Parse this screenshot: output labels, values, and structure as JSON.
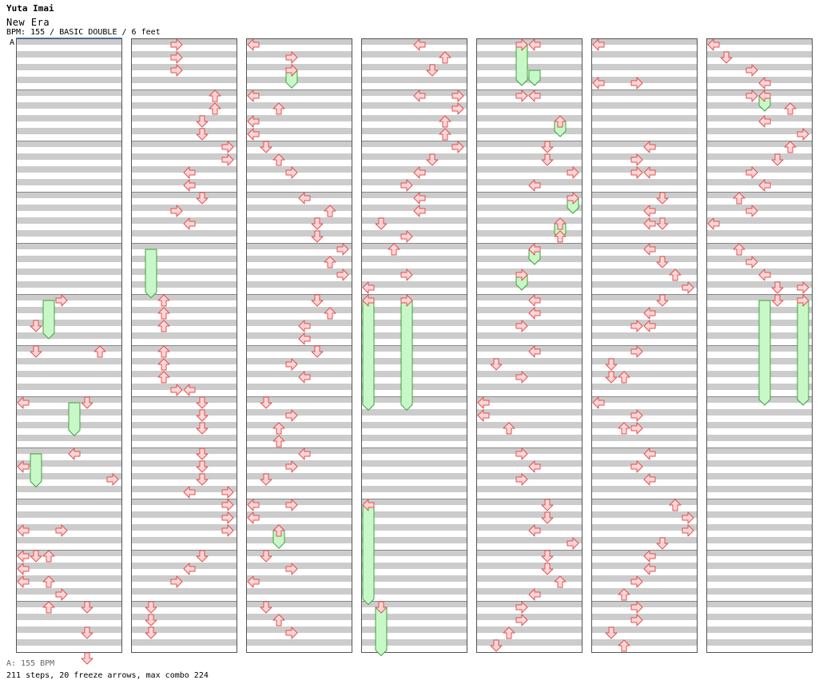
{
  "song": {
    "artist": "Yuta Imai",
    "title": "New Era",
    "info": "BPM: 155 / BASIC DOUBLE / 6 feet",
    "marker": "A"
  },
  "footer": {
    "bpm_line": "A: 155 BPM",
    "stats_line": "211 steps, 20 freeze arrows, max combo 224"
  },
  "colors": {
    "stripe": "#cccccc",
    "arrow_fill": "#ffd6d6",
    "arrow_stroke": "#e05050",
    "freeze_fill": "#c8f8c8",
    "freeze_stroke": "#40a040",
    "border": "#555555",
    "marker_line": "#4a8ad8"
  },
  "chart_data": {
    "type": "step-chart",
    "mode": "BASIC DOUBLE",
    "bpm": 155,
    "lanes": [
      "P1-left",
      "P1-down",
      "P1-up",
      "P1-right",
      "P2-left",
      "P2-down",
      "P2-up",
      "P2-right"
    ],
    "measures_per_column": 12,
    "beats_per_measure": 4,
    "columns": [
      {
        "arrows": [
          [
            5,
            0.0,
            3
          ],
          [
            5,
            0.5,
            1
          ],
          [
            6,
            0.0,
            1
          ],
          [
            7,
            0.0,
            0
          ],
          [
            8,
            2.0,
            1
          ],
          [
            8,
            0.25,
            0
          ],
          [
            8,
            2.25,
            0
          ],
          [
            9,
            0.5,
            0
          ],
          [
            9,
            1.0,
            0
          ],
          [
            9,
            1.5,
            0
          ],
          [
            10,
            0.0,
            2
          ],
          [
            10,
            0.5,
            2
          ],
          [
            10,
            1.0,
            2
          ],
          [
            11,
            0.0,
            5
          ],
          [
            11,
            0.5,
            5
          ],
          [
            11,
            1.0,
            5
          ],
          [
            6,
            1.0,
            5
          ],
          [
            6,
            2.0,
            4
          ],
          [
            5,
            1.0,
            6
          ],
          [
            6,
            2.5,
            7
          ],
          [
            9,
            1.75,
            3
          ],
          [
            8,
            1.5,
            3
          ]
        ],
        "freezes": [
          [
            5,
            0.0,
            2,
            0.7
          ],
          [
            7,
            0.0,
            4,
            0.6
          ],
          [
            8,
            0.0,
            1,
            0.6
          ]
        ]
      },
      {
        "arrows": [
          [
            0,
            0.0,
            3
          ],
          [
            0,
            0.25,
            3
          ],
          [
            0,
            0.5,
            3
          ],
          [
            1,
            0.0,
            6
          ],
          [
            1,
            0.25,
            6
          ],
          [
            1,
            0.5,
            5
          ],
          [
            1,
            0.75,
            5
          ],
          [
            2,
            0.0,
            7
          ],
          [
            2,
            0.25,
            7
          ],
          [
            2,
            0.5,
            4
          ],
          [
            2,
            0.75,
            4
          ],
          [
            3,
            0.0,
            5
          ],
          [
            3,
            0.25,
            3
          ],
          [
            3,
            0.5,
            4
          ],
          [
            5,
            0.0,
            2
          ],
          [
            5,
            0.25,
            2
          ],
          [
            5,
            0.5,
            2
          ],
          [
            6,
            0.0,
            2
          ],
          [
            6,
            0.25,
            2
          ],
          [
            6,
            0.5,
            2
          ],
          [
            6,
            0.75,
            3
          ],
          [
            6,
            0.75,
            4
          ],
          [
            7,
            0.0,
            5
          ],
          [
            7,
            0.25,
            5
          ],
          [
            7,
            0.5,
            5
          ],
          [
            8,
            0.0,
            5
          ],
          [
            8,
            0.25,
            5
          ],
          [
            8,
            0.5,
            5
          ],
          [
            8,
            0.75,
            4
          ],
          [
            8,
            0.75,
            7
          ],
          [
            9,
            0.0,
            7
          ],
          [
            9,
            0.25,
            7
          ],
          [
            9,
            0.5,
            7
          ],
          [
            10,
            0.0,
            5
          ],
          [
            10,
            0.25,
            4
          ],
          [
            10,
            0.5,
            3
          ],
          [
            11,
            0.0,
            1
          ],
          [
            11,
            0.25,
            1
          ],
          [
            11,
            0.5,
            1
          ]
        ],
        "freezes": [
          [
            4,
            0.0,
            1,
            0.9
          ]
        ]
      },
      {
        "arrows": [
          [
            0,
            0.0,
            0
          ],
          [
            0,
            0.25,
            3
          ],
          [
            0,
            0.5,
            3
          ],
          [
            1,
            0.0,
            0
          ],
          [
            1,
            0.25,
            2
          ],
          [
            1,
            0.5,
            0
          ],
          [
            1,
            0.75,
            0
          ],
          [
            2,
            0.0,
            1
          ],
          [
            2,
            0.25,
            2
          ],
          [
            2,
            0.5,
            3
          ],
          [
            3,
            0.0,
            4
          ],
          [
            3,
            0.25,
            6
          ],
          [
            3,
            0.5,
            5
          ],
          [
            3,
            0.75,
            5
          ],
          [
            4,
            0.0,
            7
          ],
          [
            4,
            0.25,
            6
          ],
          [
            4,
            0.5,
            7
          ],
          [
            5,
            0.0,
            5
          ],
          [
            5,
            0.25,
            6
          ],
          [
            5,
            0.5,
            4
          ],
          [
            5,
            0.75,
            4
          ],
          [
            6,
            0.0,
            5
          ],
          [
            6,
            0.25,
            3
          ],
          [
            6,
            0.5,
            4
          ],
          [
            7,
            0.0,
            1
          ],
          [
            7,
            0.25,
            3
          ],
          [
            7,
            0.5,
            2
          ],
          [
            7,
            0.75,
            2
          ],
          [
            8,
            0.0,
            4
          ],
          [
            8,
            0.25,
            3
          ],
          [
            8,
            0.5,
            1
          ],
          [
            9,
            0.0,
            0
          ],
          [
            9,
            0.0,
            3
          ],
          [
            9,
            0.25,
            0
          ],
          [
            9,
            0.5,
            2
          ],
          [
            10,
            0.0,
            1
          ],
          [
            10,
            0.25,
            3
          ],
          [
            10,
            0.5,
            0
          ],
          [
            11,
            0.0,
            1
          ],
          [
            11,
            0.25,
            2
          ],
          [
            11,
            0.5,
            3
          ],
          [
            0,
            0.5,
            3
          ],
          [
            9,
            0.5,
            2
          ]
        ],
        "freezes": [
          [
            0,
            0.5,
            3,
            0.3
          ],
          [
            9,
            0.5,
            2,
            0.3
          ]
        ]
      },
      {
        "arrows": [
          [
            0,
            0.0,
            4
          ],
          [
            0,
            0.25,
            6
          ],
          [
            0,
            0.5,
            5
          ],
          [
            1,
            0.0,
            4
          ],
          [
            1,
            0.0,
            7
          ],
          [
            1,
            0.25,
            7
          ],
          [
            1,
            0.5,
            6
          ],
          [
            1,
            0.75,
            6
          ],
          [
            2,
            0.0,
            7
          ],
          [
            2,
            0.25,
            5
          ],
          [
            2,
            0.5,
            4
          ],
          [
            2,
            0.75,
            3
          ],
          [
            3,
            0.0,
            4
          ],
          [
            3,
            0.25,
            4
          ],
          [
            3,
            0.5,
            1
          ],
          [
            3,
            0.75,
            3
          ],
          [
            4,
            0.0,
            2
          ],
          [
            4,
            0.5,
            3
          ],
          [
            4,
            0.75,
            0
          ],
          [
            5,
            0.0,
            0
          ],
          [
            5,
            0.0,
            3
          ],
          [
            9,
            0.0,
            0
          ],
          [
            11,
            0.0,
            1
          ]
        ],
        "freezes": [
          [
            5,
            0.0,
            0,
            2.1
          ],
          [
            5,
            0.0,
            3,
            2.1
          ],
          [
            9,
            0.0,
            0,
            1.9
          ],
          [
            11,
            0.0,
            1,
            0.9
          ]
        ]
      },
      {
        "arrows": [
          [
            0,
            0.0,
            3
          ],
          [
            1,
            0.0,
            3
          ],
          [
            1,
            0.0,
            4
          ],
          [
            1,
            0.5,
            6
          ],
          [
            2,
            0.0,
            5
          ],
          [
            2,
            0.25,
            5
          ],
          [
            2,
            0.5,
            7
          ],
          [
            2,
            0.75,
            4
          ],
          [
            3,
            0.0,
            7
          ],
          [
            3,
            0.5,
            6
          ],
          [
            4,
            0.0,
            4
          ],
          [
            4,
            0.5,
            3
          ],
          [
            5,
            0.0,
            4
          ],
          [
            5,
            0.25,
            4
          ],
          [
            5,
            0.5,
            3
          ],
          [
            6,
            0.0,
            4
          ],
          [
            6,
            0.25,
            1
          ],
          [
            6,
            0.5,
            3
          ],
          [
            7,
            0.0,
            0
          ],
          [
            7,
            0.25,
            0
          ],
          [
            7,
            0.5,
            2
          ],
          [
            8,
            0.0,
            3
          ],
          [
            8,
            0.25,
            4
          ],
          [
            8,
            0.5,
            3
          ],
          [
            9,
            0.0,
            5
          ],
          [
            9,
            0.25,
            5
          ],
          [
            9,
            0.5,
            4
          ],
          [
            9,
            0.75,
            7
          ],
          [
            10,
            0.0,
            5
          ],
          [
            10,
            0.25,
            5
          ],
          [
            10,
            0.5,
            6
          ],
          [
            10,
            0.75,
            4
          ],
          [
            11,
            0.0,
            3
          ],
          [
            11,
            0.25,
            3
          ],
          [
            11,
            0.5,
            2
          ],
          [
            11,
            0.75,
            1
          ],
          [
            0,
            0.0,
            4
          ],
          [
            3,
            0.75,
            6
          ],
          [
            4,
            0.0,
            4
          ]
        ],
        "freezes": [
          [
            0,
            0.0,
            3,
            0.75
          ],
          [
            0,
            0.5,
            4,
            0.25
          ],
          [
            1,
            0.5,
            6,
            0.25
          ],
          [
            3,
            0.0,
            7,
            0.25
          ],
          [
            3,
            0.5,
            6,
            0.25
          ],
          [
            4,
            0.0,
            4,
            0.25
          ],
          [
            4,
            0.5,
            3,
            0.25
          ]
        ]
      },
      {
        "arrows": [
          [
            0,
            0.0,
            0
          ],
          [
            0,
            0.75,
            0
          ],
          [
            0,
            0.75,
            3
          ],
          [
            2,
            0.0,
            4
          ],
          [
            2,
            0.25,
            3
          ],
          [
            2,
            0.5,
            3
          ],
          [
            2,
            0.5,
            4
          ],
          [
            3,
            0.0,
            5
          ],
          [
            3,
            0.25,
            4
          ],
          [
            3,
            0.5,
            4
          ],
          [
            3,
            0.5,
            5
          ],
          [
            4,
            0.0,
            4
          ],
          [
            4,
            0.25,
            5
          ],
          [
            4,
            0.5,
            6
          ],
          [
            4,
            0.75,
            7
          ],
          [
            5,
            0.0,
            5
          ],
          [
            5,
            0.25,
            4
          ],
          [
            5,
            0.5,
            3
          ],
          [
            5,
            0.5,
            4
          ],
          [
            6,
            0.0,
            3
          ],
          [
            6,
            0.25,
            1
          ],
          [
            6,
            0.5,
            1
          ],
          [
            6,
            0.5,
            2
          ],
          [
            7,
            0.0,
            0
          ],
          [
            7,
            0.25,
            3
          ],
          [
            7,
            0.5,
            2
          ],
          [
            7,
            0.5,
            3
          ],
          [
            8,
            0.0,
            4
          ],
          [
            8,
            0.25,
            3
          ],
          [
            8,
            0.5,
            4
          ],
          [
            9,
            0.0,
            6
          ],
          [
            9,
            0.25,
            7
          ],
          [
            9,
            0.5,
            7
          ],
          [
            9,
            0.75,
            5
          ],
          [
            10,
            0.0,
            4
          ],
          [
            10,
            0.25,
            4
          ],
          [
            10,
            0.5,
            3
          ],
          [
            10,
            0.75,
            2
          ],
          [
            11,
            0.0,
            3
          ],
          [
            11,
            0.25,
            3
          ],
          [
            11,
            0.5,
            1
          ],
          [
            11,
            0.75,
            2
          ]
        ],
        "freezes": []
      },
      {
        "arrows": [
          [
            0,
            0.0,
            0
          ],
          [
            0,
            0.25,
            1
          ],
          [
            0,
            0.5,
            3
          ],
          [
            0,
            0.75,
            4
          ],
          [
            1,
            0.0,
            3
          ],
          [
            1,
            0.25,
            6
          ],
          [
            1,
            0.5,
            4
          ],
          [
            1,
            0.75,
            7
          ],
          [
            2,
            0.0,
            6
          ],
          [
            2,
            0.25,
            5
          ],
          [
            2,
            0.5,
            3
          ],
          [
            2,
            0.75,
            4
          ],
          [
            3,
            0.0,
            2
          ],
          [
            3,
            0.25,
            3
          ],
          [
            3,
            0.5,
            0
          ],
          [
            4,
            0.0,
            2
          ],
          [
            4,
            0.25,
            3
          ],
          [
            4,
            0.5,
            4
          ],
          [
            4,
            0.75,
            5
          ],
          [
            5,
            0.0,
            5
          ],
          [
            5,
            0.0,
            7
          ],
          [
            4,
            0.75,
            7
          ],
          [
            1,
            0.0,
            4
          ]
        ],
        "freezes": [
          [
            1,
            0.0,
            4,
            0.25
          ],
          [
            5,
            0.0,
            4,
            2.0
          ],
          [
            5,
            0.0,
            7,
            2.0
          ]
        ]
      }
    ]
  }
}
